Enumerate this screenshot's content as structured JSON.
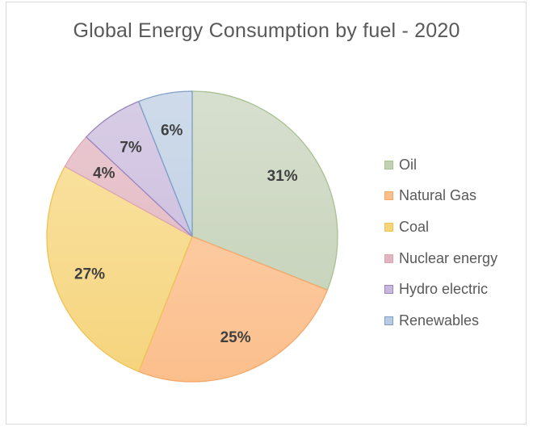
{
  "chart_data": {
    "type": "pie",
    "title": "Global Energy Consumption by fuel - 2020",
    "categories": [
      "Oil",
      "Natural Gas",
      "Coal",
      "Nuclear energy",
      "Hydro electric",
      "Renewables"
    ],
    "values": [
      31,
      25,
      27,
      4,
      7,
      6
    ],
    "data_labels": [
      "31%",
      "25%",
      "27%",
      "4%",
      "7%",
      "6%"
    ],
    "colors": {
      "fill_light": [
        "#d7dfcf",
        "#fdd4b3",
        "#fae4a8",
        "#eac9d1",
        "#d8cde6",
        "#cfdbea"
      ],
      "fill_dark": [
        "#c2d0b4",
        "#fbbf8c",
        "#f5d47c",
        "#e2b5c0",
        "#c7b8dc",
        "#b8cbe2"
      ],
      "stroke": [
        "#a9c08f",
        "#f5a868",
        "#eec356",
        "#dba7b5",
        "#9a85bf",
        "#7f9fc7"
      ]
    },
    "legend_position": "right"
  }
}
